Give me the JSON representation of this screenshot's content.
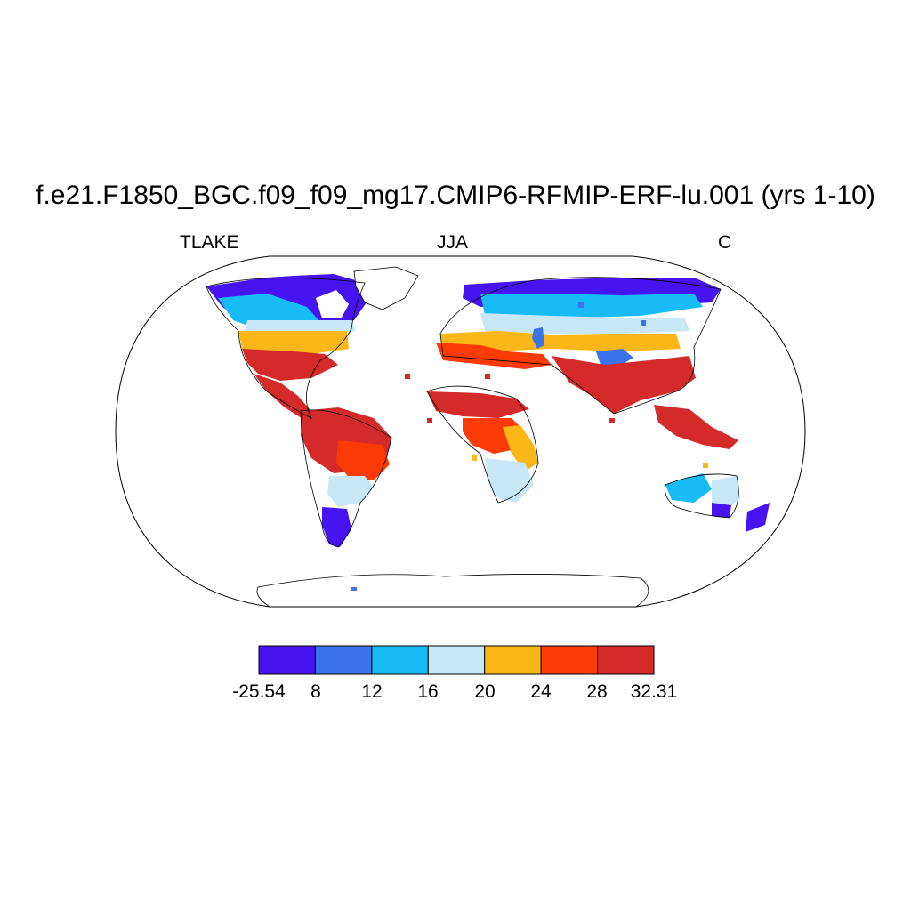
{
  "title": "f.e21.F1850_BGC.f09_f09_mg17.CMIP6-RFMIP-ERF-lu.001 (yrs 1-10)",
  "left_label": "TLAKE",
  "center_label": "JJA",
  "right_label": "C",
  "colorbar": {
    "colors": [
      "#4514F0",
      "#3B73EA",
      "#17BBF5",
      "#C8E7F6",
      "#FBB617",
      "#FC3A05",
      "#D42A2A"
    ],
    "labels": [
      "-25.54",
      "8",
      "12",
      "16",
      "20",
      "24",
      "28",
      "32.31"
    ]
  }
}
